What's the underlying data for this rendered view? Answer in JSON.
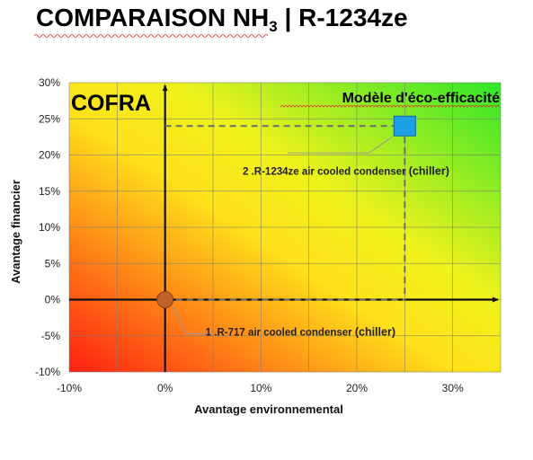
{
  "title": {
    "main": "COMPARAISON NH",
    "sub": "3",
    "rest": " | R-1234ze"
  },
  "chart_data": {
    "type": "scatter",
    "xlabel": "Avantage environnemental",
    "ylabel": "Avantage financier",
    "xlim": [
      -10,
      35
    ],
    "ylim": [
      -10,
      30
    ],
    "x_ticks": [
      "-10%",
      "0%",
      "10%",
      "20%",
      "30%"
    ],
    "y_ticks": [
      "30%",
      "25%",
      "20%",
      "15%",
      "10%",
      "5%",
      "0%",
      "-5%",
      "-10%"
    ],
    "grid": true,
    "background": "red-yellow-green diagonal gradient",
    "corner_label": "COFRA",
    "model_label": "Modèle d'éco-efficacité",
    "points": [
      {
        "x": 0,
        "y": 0,
        "label": "1 .R-717 air cooled condenser",
        "label_tail": "(chiller)",
        "marker": "circle",
        "color": "#c1622c"
      },
      {
        "x": 25,
        "y": 24,
        "label": "2 .R-1234ze air cooled condenser",
        "label_tail": "(chiller)",
        "marker": "square",
        "color": "#1ea0e6"
      }
    ]
  }
}
